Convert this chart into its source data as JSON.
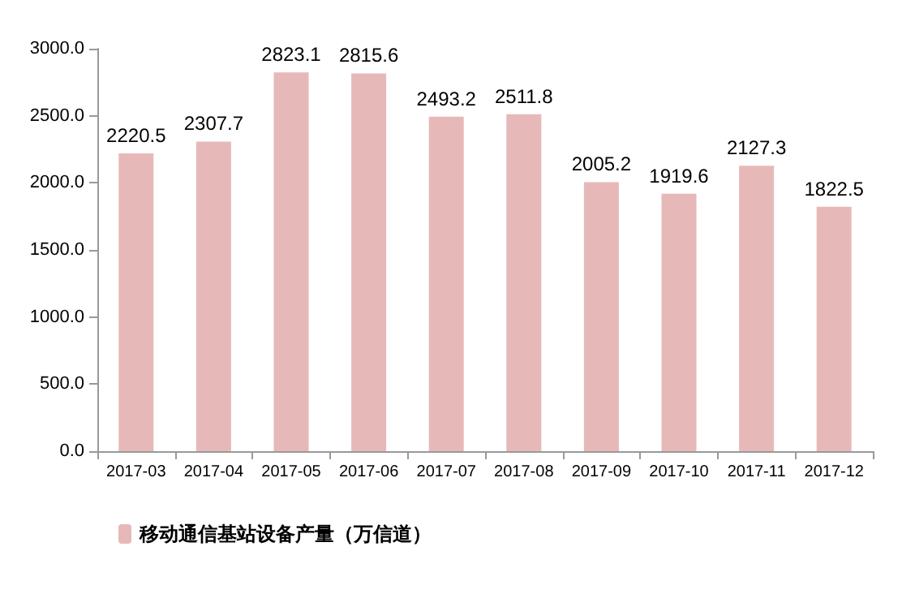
{
  "chart_data": {
    "type": "bar",
    "categories": [
      "2017-03",
      "2017-04",
      "2017-05",
      "2017-06",
      "2017-07",
      "2017-08",
      "2017-09",
      "2017-10",
      "2017-11",
      "2017-12"
    ],
    "series": [
      {
        "name": "移动通信基站设备产量（万信道）",
        "color": "#e6b9b8",
        "values": [
          2220.5,
          2307.7,
          2823.1,
          2815.6,
          2493.2,
          2511.8,
          2005.2,
          1919.6,
          2127.3,
          1822.5
        ]
      }
    ],
    "ylim": [
      0,
      3000
    ],
    "yticks": [
      {
        "value": 0,
        "label": "0.0"
      },
      {
        "value": 500,
        "label": "500.0"
      },
      {
        "value": 1000,
        "label": "1000.0"
      },
      {
        "value": 1500,
        "label": "1500.0"
      },
      {
        "value": 2000,
        "label": "2000.0"
      },
      {
        "value": 2500,
        "label": "2500.0"
      },
      {
        "value": 3000,
        "label": "3000.0"
      }
    ],
    "data_labels": true,
    "legend": "bottom left",
    "grid": false
  }
}
